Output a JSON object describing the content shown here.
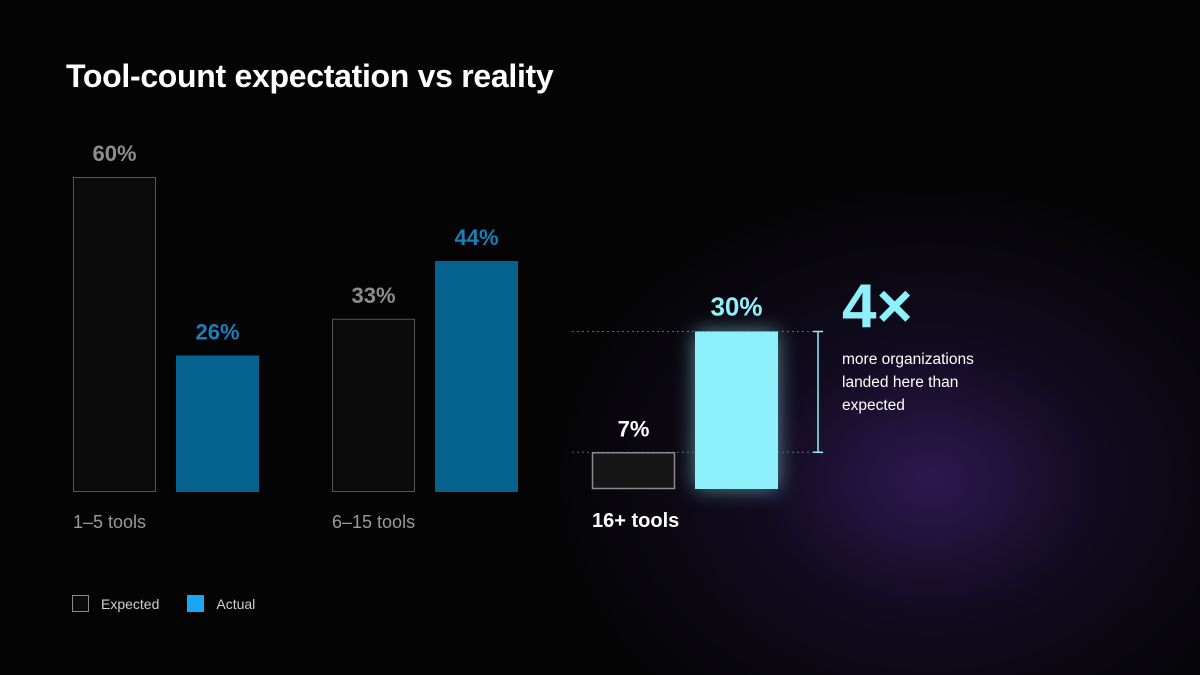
{
  "title": "Tool-count expectation vs reality",
  "chart_data": {
    "type": "bar",
    "categories": [
      "1–5 tools",
      "6–15 tools",
      "16+ tools"
    ],
    "series": [
      {
        "name": "Expected",
        "values": [
          60,
          33,
          7
        ],
        "labels": [
          "60%",
          "33%",
          "7%"
        ]
      },
      {
        "name": "Actual",
        "values": [
          26,
          44,
          30
        ],
        "labels": [
          "26%",
          "44%",
          "30%"
        ]
      }
    ],
    "highlight_category": "16+ tools",
    "ylim": [
      0,
      60
    ],
    "grid": false,
    "legend_position": "bottom-left",
    "colors": {
      "expected_fill": "#0b0b0b",
      "expected_stroke": "#555555",
      "expected_label": "#8d8d8d",
      "actual": "#05628f",
      "actual_label": "#1a7fb8",
      "highlight_actual": "#8ef0fa",
      "highlight_label": "#ffffff",
      "category_label": "#9a9a9a"
    }
  },
  "callout": {
    "value": "4×",
    "text": "more organizations landed here than expected"
  },
  "legend": {
    "expected": "Expected",
    "actual": "Actual"
  }
}
